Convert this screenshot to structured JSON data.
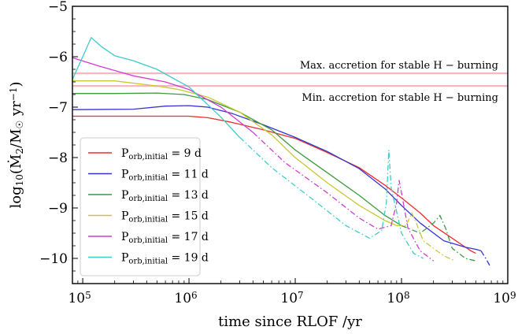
{
  "chart_data": {
    "type": "line",
    "xlabel": "time since RLOF /yr",
    "ylabel": "log10(Ṁ2/M☉ yr−1)",
    "xscale": "log",
    "xlim": [
      80000,
      1000000000
    ],
    "ylim": [
      -10.5,
      -5
    ],
    "x_ticks": [
      {
        "value": 100000,
        "base": "10",
        "exp": "5"
      },
      {
        "value": 1000000,
        "base": "10",
        "exp": "6"
      },
      {
        "value": 10000000,
        "base": "10",
        "exp": "7"
      },
      {
        "value": 100000000,
        "base": "10",
        "exp": "8"
      },
      {
        "value": 1000000000,
        "base": "10",
        "exp": "9"
      }
    ],
    "y_ticks": [
      {
        "value": -5,
        "label": "−5"
      },
      {
        "value": -6,
        "label": "−6"
      },
      {
        "value": -7,
        "label": "−7"
      },
      {
        "value": -8,
        "label": "−8"
      },
      {
        "value": -9,
        "label": "−9"
      },
      {
        "value": -10,
        "label": "−10"
      }
    ],
    "grid": false,
    "legend_position": "lower-left",
    "hlines": [
      {
        "y": -6.33,
        "label": "Max. accretion for stable H − burning",
        "color": "#f4b8c0"
      },
      {
        "y": -6.58,
        "label": "Min. accretion for stable H − burning",
        "color": "#f4b8c0"
      }
    ],
    "series": [
      {
        "name": "P_orb,initial = 9 d",
        "period": "9",
        "color": "#e8302c",
        "solid": [
          [
            80000,
            -7.18
          ],
          [
            300000,
            -7.18
          ],
          [
            1000000,
            -7.18
          ],
          [
            1500000,
            -7.21
          ],
          [
            2500000,
            -7.3
          ],
          [
            5000000,
            -7.45
          ],
          [
            10000000,
            -7.62
          ],
          [
            20000000,
            -7.9
          ],
          [
            40000000,
            -8.2
          ],
          [
            70000000,
            -8.55
          ],
          [
            100000000,
            -8.8
          ],
          [
            150000000,
            -9.1
          ],
          [
            200000000,
            -9.35
          ],
          [
            300000000,
            -9.6
          ],
          [
            400000000,
            -9.78
          ],
          [
            450000000,
            -9.85
          ],
          [
            500000000,
            -9.9
          ]
        ],
        "dashed": []
      },
      {
        "name": "P_orb,initial = 11 d",
        "period": "11",
        "color": "#3535d0",
        "solid": [
          [
            80000,
            -7.05
          ],
          [
            300000,
            -7.04
          ],
          [
            600000,
            -6.98
          ],
          [
            1000000,
            -6.97
          ],
          [
            1500000,
            -7.0
          ],
          [
            2500000,
            -7.12
          ],
          [
            5000000,
            -7.35
          ],
          [
            10000000,
            -7.6
          ],
          [
            20000000,
            -7.88
          ],
          [
            40000000,
            -8.22
          ],
          [
            70000000,
            -8.62
          ],
          [
            100000000,
            -8.95
          ],
          [
            150000000,
            -9.3
          ],
          [
            250000000,
            -9.65
          ],
          [
            400000000,
            -9.78
          ],
          [
            500000000,
            -9.82
          ],
          [
            560000000,
            -9.85
          ]
        ],
        "dashed": [
          [
            560000000,
            -9.85
          ],
          [
            620000000,
            -10.0
          ],
          [
            680000000,
            -10.15
          ]
        ]
      },
      {
        "name": "P_orb,initial = 13 d",
        "period": "13",
        "color": "#3c9a3c",
        "solid": [
          [
            80000,
            -6.73
          ],
          [
            200000,
            -6.73
          ],
          [
            500000,
            -6.72
          ],
          [
            900000,
            -6.75
          ],
          [
            1500000,
            -6.85
          ],
          [
            3000000,
            -7.1
          ],
          [
            6000000,
            -7.45
          ],
          [
            10000000,
            -7.85
          ],
          [
            20000000,
            -8.3
          ],
          [
            40000000,
            -8.75
          ],
          [
            70000000,
            -9.15
          ],
          [
            100000000,
            -9.35
          ]
        ],
        "dashed": [
          [
            100000000,
            -9.35
          ],
          [
            150000000,
            -9.5
          ],
          [
            200000000,
            -9.3
          ],
          [
            230000000,
            -9.15
          ],
          [
            260000000,
            -9.4
          ],
          [
            300000000,
            -9.8
          ],
          [
            400000000,
            -10.0
          ],
          [
            500000000,
            -10.05
          ]
        ]
      },
      {
        "name": "P_orb,initial = 15 d",
        "period": "15",
        "color": "#c8c832",
        "solid": [
          [
            80000,
            -6.48
          ],
          [
            200000,
            -6.48
          ],
          [
            500000,
            -6.58
          ],
          [
            800000,
            -6.65
          ],
          [
            1500000,
            -6.8
          ],
          [
            3000000,
            -7.1
          ],
          [
            6000000,
            -7.55
          ],
          [
            10000000,
            -8.0
          ],
          [
            20000000,
            -8.5
          ],
          [
            40000000,
            -8.95
          ],
          [
            70000000,
            -9.25
          ],
          [
            90000000,
            -9.35
          ]
        ],
        "dashed": [
          [
            90000000,
            -9.35
          ],
          [
            110000000,
            -9.35
          ],
          [
            125000000,
            -9.1
          ],
          [
            135000000,
            -9.25
          ],
          [
            160000000,
            -9.65
          ],
          [
            250000000,
            -9.95
          ],
          [
            320000000,
            -10.05
          ]
        ]
      },
      {
        "name": "P_orb,initial = 17 d",
        "period": "17",
        "color": "#d23cd2",
        "solid": [
          [
            80000,
            -6.02
          ],
          [
            150000,
            -6.2
          ],
          [
            300000,
            -6.38
          ],
          [
            600000,
            -6.5
          ],
          [
            1000000,
            -6.65
          ],
          [
            2000000,
            -7.0
          ],
          [
            4000000,
            -7.5
          ]
        ],
        "dashed": [
          [
            4000000,
            -7.5
          ],
          [
            8000000,
            -8.1
          ],
          [
            20000000,
            -8.7
          ],
          [
            40000000,
            -9.2
          ],
          [
            60000000,
            -9.42
          ],
          [
            80000000,
            -9.35
          ],
          [
            90000000,
            -8.9
          ],
          [
            95000000,
            -8.45
          ],
          [
            100000000,
            -8.7
          ],
          [
            115000000,
            -9.4
          ],
          [
            150000000,
            -9.85
          ],
          [
            200000000,
            -10.05
          ]
        ]
      },
      {
        "name": "P_orb,initial = 19 d",
        "period": "19",
        "color": "#3ccccc",
        "solid": [
          [
            80000,
            -6.45
          ],
          [
            100000,
            -6.0
          ],
          [
            120000,
            -5.62
          ],
          [
            150000,
            -5.8
          ],
          [
            200000,
            -5.98
          ],
          [
            300000,
            -6.08
          ],
          [
            500000,
            -6.25
          ],
          [
            1000000,
            -6.6
          ],
          [
            2000000,
            -7.2
          ],
          [
            3000000,
            -7.6
          ]
        ],
        "dashed": [
          [
            3000000,
            -7.6
          ],
          [
            6000000,
            -8.2
          ],
          [
            15000000,
            -8.85
          ],
          [
            30000000,
            -9.35
          ],
          [
            50000000,
            -9.6
          ],
          [
            65000000,
            -9.45
          ],
          [
            72000000,
            -8.9
          ],
          [
            76000000,
            -7.85
          ],
          [
            80000000,
            -8.6
          ],
          [
            100000000,
            -9.5
          ],
          [
            130000000,
            -9.9
          ],
          [
            160000000,
            -10.0
          ]
        ]
      }
    ]
  }
}
